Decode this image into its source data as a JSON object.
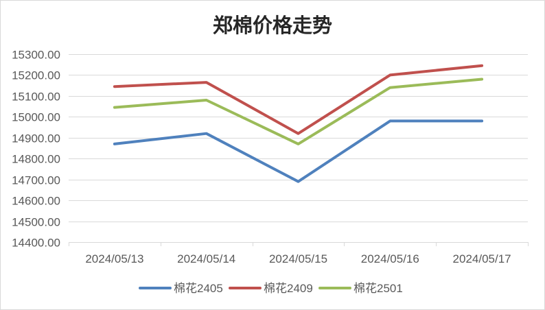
{
  "chart_data": {
    "type": "line",
    "title": "郑棉价格走势",
    "categories": [
      "2024/05/13",
      "2024/05/14",
      "2024/05/15",
      "2024/05/16",
      "2024/05/17"
    ],
    "series": [
      {
        "name": "棉花2405",
        "color": "#4f81bd",
        "values": [
          14870,
          14920,
          14690,
          14980,
          14980
        ]
      },
      {
        "name": "棉花2409",
        "color": "#c0504d",
        "values": [
          15145,
          15165,
          14920,
          15200,
          15245
        ]
      },
      {
        "name": "棉花2501",
        "color": "#9bbb59",
        "values": [
          15045,
          15080,
          14870,
          15140,
          15180
        ]
      }
    ],
    "ylim": [
      14400,
      15300
    ],
    "y_tick_labels": [
      "15300.00",
      "15200.00",
      "15100.00",
      "15000.00",
      "14900.00",
      "14800.00",
      "14700.00",
      "14600.00",
      "14500.00",
      "14400.00"
    ],
    "grid": true,
    "legend": "bottom"
  }
}
